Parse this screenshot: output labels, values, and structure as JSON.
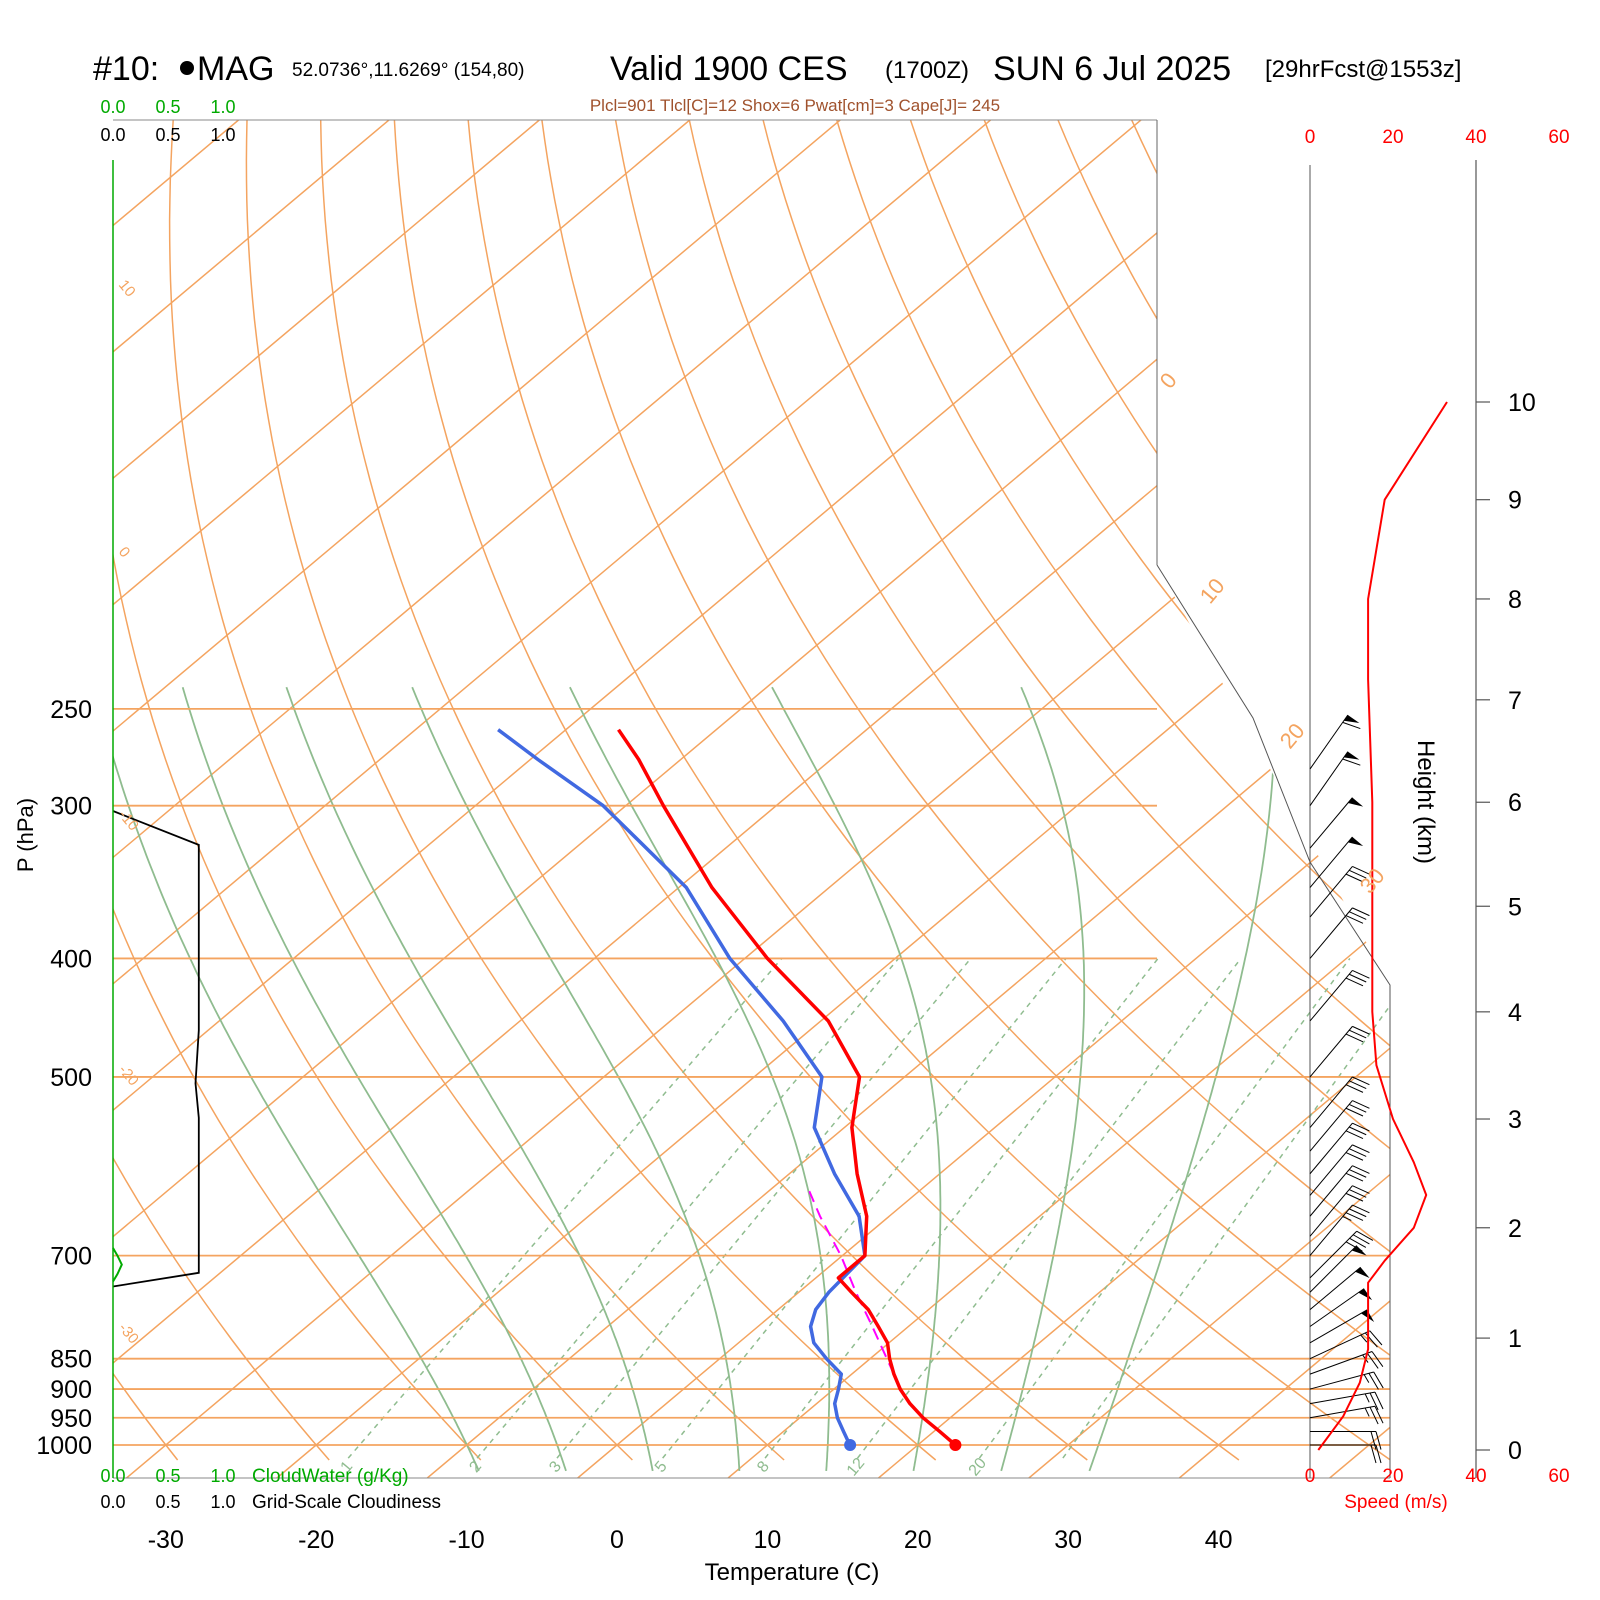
{
  "header": {
    "station_id": "#10: ",
    "station_name": "MAG",
    "coords": "52.0736°,11.6269° (154,80)",
    "valid": "Valid 1900 CES",
    "utc": "(1700Z)",
    "date": "SUN 6 Jul 2025",
    "forecast": "[29hrFcst@1553z]",
    "indices": "Plcl=901 Tlcl[C]=12 Shox=6 Pwat[cm]=3 Cape[J]= 245"
  },
  "colors": {
    "temperature": "#ff0000",
    "dewpoint": "#4169e1",
    "parcel": "#ff00ff",
    "isotherm": "#f4a460",
    "dry_adiabat": "#f4a460",
    "moist_adiabat": "#8fbc8f",
    "mixing_ratio": "#8fbc8f",
    "cloudwater": "#00aa00",
    "cloudiness": "#000000",
    "wind_speed": "#ff0000",
    "indices_text": "#a0522d"
  },
  "chart_data": {
    "type": "skewt",
    "xlabel": "Temperature (C)",
    "ylabel": "P (hPa)",
    "y2label": "Height (km)",
    "speed_label": "Speed (m/s)",
    "cloudwater_label": "CloudWater (g/Kg)",
    "cloudiness_label": "Grid-Scale Cloudiness",
    "x_ticks": [
      "-30",
      "-20",
      "-10",
      "0",
      "10",
      "20",
      "30",
      "40"
    ],
    "x_tick_values": [
      -30,
      -20,
      -10,
      0,
      10,
      20,
      30,
      40
    ],
    "p_levels": [
      250,
      300,
      400,
      500,
      700,
      850,
      900,
      950,
      1000
    ],
    "p_labels": [
      "250",
      "300",
      "400",
      "500",
      "700",
      "850",
      "900",
      "950",
      "1000"
    ],
    "height_ticks": [
      "0",
      "1",
      "2",
      "3",
      "4",
      "5",
      "6",
      "7",
      "8",
      "9",
      "10"
    ],
    "height_values": [
      0,
      1,
      2,
      3,
      4,
      5,
      6,
      7,
      8,
      9,
      10
    ],
    "speed_ticks": [
      "0",
      "20",
      "40",
      "60"
    ],
    "cloud_ticks": [
      "0.0",
      "0.5",
      "1.0"
    ],
    "isotherm_labels": [
      "10",
      "0",
      "-10",
      "-20",
      "-30"
    ],
    "isotherm_label_values": [
      10,
      0,
      -10,
      -20,
      -30
    ],
    "right_isotherm_labels": [
      "0",
      "10",
      "20",
      "30"
    ],
    "mixing_ratio_labels": [
      "1",
      "2",
      "3",
      "5",
      "8",
      "12",
      "20"
    ],
    "mixing_ratio_values": [
      1,
      2,
      3,
      5,
      8,
      12,
      20
    ],
    "temperature": {
      "name": "Temperature",
      "p": [
        1000,
        975,
        950,
        925,
        900,
        875,
        850,
        825,
        800,
        775,
        750,
        730,
        700,
        650,
        600,
        550,
        500,
        450,
        400,
        350,
        300,
        275,
        260
      ],
      "t": [
        22.5,
        20.4,
        18.2,
        16.2,
        14.4,
        12.8,
        11.3,
        9.9,
        8.0,
        6.0,
        3.5,
        1.5,
        1.5,
        -1.5,
        -5.5,
        -9.5,
        -13.0,
        -19.5,
        -28.5,
        -37.8,
        -47.5,
        -52.8,
        -56.5
      ]
    },
    "dewpoint": {
      "name": "Dewpoint",
      "p": [
        1000,
        990,
        975,
        950,
        925,
        900,
        875,
        850,
        825,
        800,
        775,
        750,
        700,
        650,
        600,
        550,
        500,
        450,
        400,
        350,
        300,
        275,
        260
      ],
      "td": [
        15.5,
        14.9,
        14.0,
        12.5,
        11.2,
        10.3,
        9.3,
        7.1,
        5.0,
        3.5,
        2.5,
        2.0,
        1.5,
        -2.0,
        -7.0,
        -12.0,
        -15.5,
        -22.5,
        -31.0,
        -39.5,
        -51.5,
        -59.5,
        -64.5
      ]
    },
    "parcel": {
      "name": "Parcel",
      "p": [
        875,
        800,
        750,
        700,
        650,
        620
      ],
      "t": [
        12.8,
        7.6,
        3.8,
        -0.1,
        -4.6,
        -7.3
      ]
    },
    "cloudwater": {
      "p": [
        690,
        700,
        712,
        725,
        735
      ],
      "value": [
        0.0,
        0.01,
        0.02,
        0.01,
        0.0
      ]
    },
    "cloudiness": {
      "p": [
        303,
        323,
        458,
        506,
        540,
        723,
        742
      ],
      "value": [
        0.0,
        0.78,
        0.78,
        0.75,
        0.78,
        0.78,
        0.0
      ]
    },
    "wind": {
      "z_km": [
        0.0,
        0.3,
        0.6,
        0.9,
        1.2,
        1.5,
        1.7,
        2.0,
        2.3,
        2.6,
        3.0,
        3.5,
        4.0,
        5.0,
        6.0,
        7.2,
        8.0,
        9.0,
        10.0
      ],
      "speed": [
        2,
        8,
        12,
        14,
        14,
        14,
        18,
        25,
        28,
        25,
        20,
        16,
        15,
        15,
        15,
        14,
        14,
        18,
        33
      ]
    },
    "barbs": {
      "p": [
        1000,
        975,
        950,
        925,
        900,
        875,
        850,
        825,
        800,
        775,
        750,
        730,
        700,
        675,
        650,
        625,
        600,
        575,
        550,
        500,
        450,
        400,
        370,
        350,
        325,
        300,
        280
      ],
      "dir": [
        270,
        270,
        260,
        260,
        255,
        250,
        245,
        240,
        235,
        230,
        225,
        225,
        220,
        220,
        220,
        220,
        220,
        220,
        220,
        220,
        220,
        220,
        220,
        220,
        220,
        215,
        215
      ],
      "spd_kt": [
        20,
        20,
        25,
        25,
        25,
        25,
        25,
        50,
        50,
        50,
        50,
        40,
        35,
        30,
        30,
        30,
        30,
        30,
        30,
        30,
        30,
        30,
        30,
        50,
        50,
        60,
        60
      ]
    }
  }
}
